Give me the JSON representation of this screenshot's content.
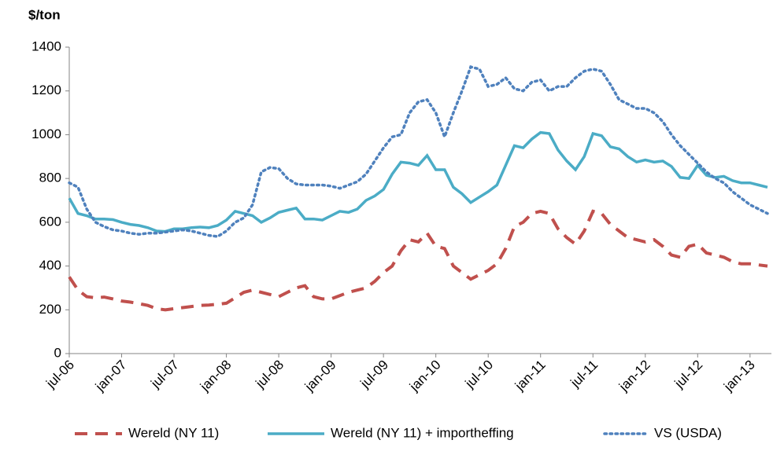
{
  "chart_data": {
    "type": "line",
    "y_label": "$/ton",
    "categories": [
      "jul-06",
      null,
      null,
      null,
      null,
      null,
      "jan-07",
      null,
      null,
      null,
      null,
      null,
      "jul-07",
      null,
      null,
      null,
      null,
      null,
      "jan-08",
      null,
      null,
      null,
      null,
      null,
      "jul-08",
      null,
      null,
      null,
      null,
      null,
      "jan-09",
      null,
      null,
      null,
      null,
      null,
      "jul-09",
      null,
      null,
      null,
      null,
      null,
      "jan-10",
      null,
      null,
      null,
      null,
      null,
      "jul-10",
      null,
      null,
      null,
      null,
      null,
      "jan-11",
      null,
      null,
      null,
      null,
      null,
      "jul-11",
      null,
      null,
      null,
      null,
      null,
      "jan-12",
      null,
      null,
      null,
      null,
      null,
      "jul-12",
      null,
      null,
      null,
      null,
      null,
      "jan-13",
      null,
      null
    ],
    "series": [
      {
        "name": "Wereld (NY 11)",
        "color": "#c0504d",
        "style": "dashed",
        "values": [
          350,
          290,
          260,
          255,
          258,
          250,
          240,
          235,
          228,
          220,
          205,
          200,
          205,
          210,
          215,
          220,
          222,
          225,
          230,
          255,
          280,
          290,
          280,
          270,
          260,
          280,
          300,
          310,
          260,
          250,
          250,
          265,
          280,
          290,
          300,
          330,
          370,
          400,
          470,
          520,
          510,
          550,
          490,
          480,
          400,
          370,
          340,
          360,
          380,
          410,
          480,
          580,
          600,
          640,
          650,
          640,
          570,
          530,
          500,
          560,
          650,
          640,
          590,
          560,
          530,
          520,
          510,
          520,
          490,
          450,
          440,
          490,
          500,
          460,
          450,
          440,
          420,
          410,
          410,
          405,
          400
        ]
      },
      {
        "name": "Wereld (NY 11) + importheffing",
        "color": "#4bacc6",
        "style": "solid",
        "values": [
          710,
          640,
          630,
          615,
          615,
          612,
          600,
          590,
          585,
          575,
          560,
          558,
          570,
          570,
          575,
          578,
          575,
          585,
          610,
          650,
          640,
          630,
          600,
          620,
          645,
          655,
          665,
          615,
          615,
          610,
          630,
          650,
          645,
          660,
          700,
          720,
          750,
          820,
          875,
          870,
          860,
          905,
          840,
          840,
          760,
          730,
          690,
          715,
          740,
          770,
          860,
          950,
          940,
          980,
          1010,
          1005,
          930,
          880,
          840,
          900,
          1005,
          995,
          945,
          935,
          900,
          875,
          885,
          875,
          880,
          855,
          805,
          800,
          860,
          815,
          805,
          810,
          790,
          780,
          780,
          770,
          760
        ]
      },
      {
        "name": "VS (USDA)",
        "color": "#4f81bd",
        "style": "dotted",
        "values": [
          780,
          760,
          660,
          600,
          580,
          565,
          560,
          550,
          545,
          550,
          550,
          555,
          560,
          565,
          560,
          550,
          540,
          535,
          560,
          600,
          620,
          680,
          830,
          850,
          845,
          800,
          775,
          770,
          770,
          770,
          765,
          755,
          770,
          785,
          820,
          880,
          940,
          990,
          1000,
          1100,
          1150,
          1160,
          1100,
          990,
          1100,
          1200,
          1310,
          1300,
          1220,
          1230,
          1260,
          1210,
          1200,
          1240,
          1250,
          1200,
          1220,
          1220,
          1260,
          1290,
          1300,
          1290,
          1230,
          1160,
          1140,
          1120,
          1120,
          1100,
          1060,
          1000,
          950,
          910,
          870,
          830,
          800,
          780,
          740,
          710,
          680,
          660,
          640
        ]
      }
    ],
    "ylim": [
      0,
      1400
    ],
    "yticks": [
      0,
      200,
      400,
      600,
      800,
      1000,
      1200,
      1400
    ],
    "grid": false,
    "legend": "bottom"
  }
}
